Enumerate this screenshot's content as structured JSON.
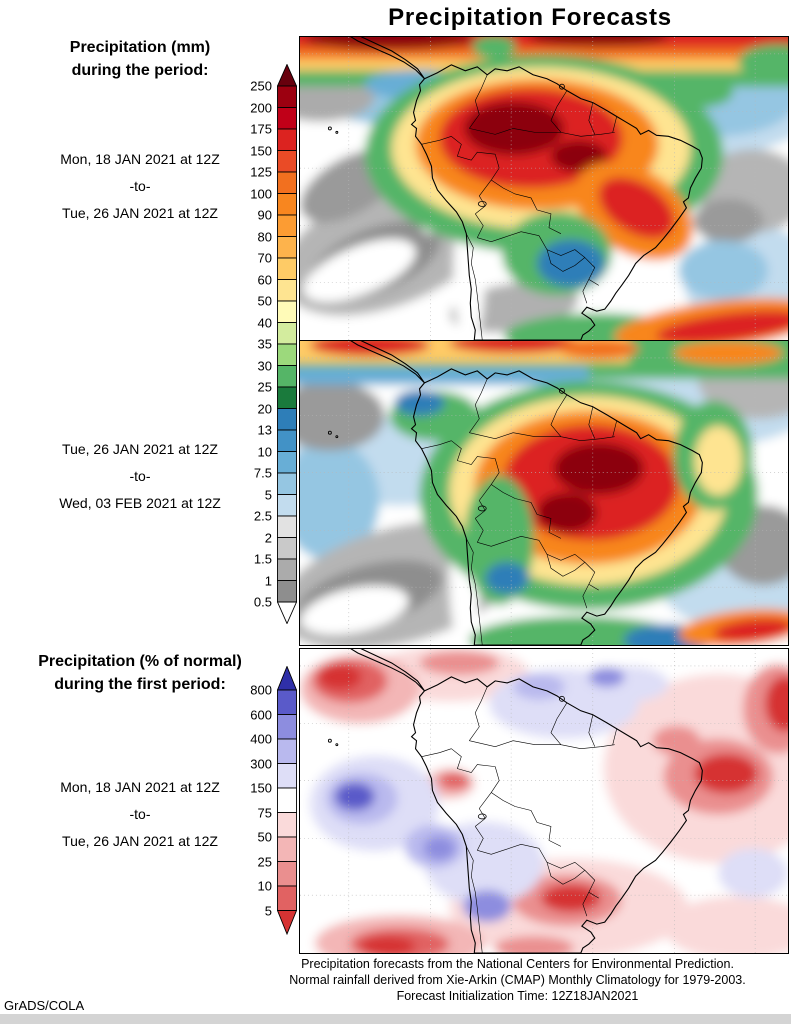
{
  "title": "Precipitation Forecasts",
  "left_panel": {
    "mm_heading": {
      "line1": "Precipitation (mm)",
      "line2": "during the period:"
    },
    "period1": {
      "from": "Mon, 18 JAN 2021 at 12Z",
      "separator": "-to-",
      "to": "Tue, 26 JAN 2021 at 12Z"
    },
    "period2": {
      "from": "Tue, 26 JAN 2021 at 12Z",
      "separator": "-to-",
      "to": "Wed, 03 FEB 2021 at 12Z"
    },
    "pct_heading": {
      "line1": "Precipitation (% of normal)",
      "line2": "during the first period:"
    },
    "period3": {
      "from": "Mon, 18 JAN 2021 at 12Z",
      "separator": "-to-",
      "to": "Tue, 26 JAN 2021 at 12Z"
    }
  },
  "colorbars": {
    "mm": {
      "width": 20,
      "arrow_h": 22,
      "seg_h": 21.5,
      "labels": [
        "250",
        "200",
        "175",
        "150",
        "125",
        "100",
        "90",
        "80",
        "70",
        "60",
        "50",
        "40",
        "35",
        "30",
        "25",
        "20",
        "13",
        "10",
        "7.5",
        "5",
        "2.5",
        "2",
        "1.5",
        "1",
        "0.5"
      ],
      "colors": [
        "#67000d",
        "#9c0010",
        "#c00018",
        "#dc2320",
        "#ea4b26",
        "#f2701f",
        "#f8861f",
        "#fc9c33",
        "#fdb34c",
        "#fecb66",
        "#fee491",
        "#fffbb8",
        "#d3ec9e",
        "#9cd97c",
        "#55b567",
        "#1a7a3c",
        "#2e7eb8",
        "#4292c6",
        "#68aed6",
        "#95c6e2",
        "#c2dcee",
        "#e2e2e2",
        "#c9c9c9",
        "#ababab",
        "#8e8e8e",
        "#ffffff"
      ]
    },
    "pct": {
      "width": 20,
      "arrow_h": 24,
      "seg_h": 24.5,
      "labels": [
        "800",
        "600",
        "400",
        "300",
        "150",
        "75",
        "50",
        "25",
        "10",
        "5"
      ],
      "colors": [
        "#2f2fa8",
        "#5a5ac9",
        "#8d8ddf",
        "#b9b9ee",
        "#dedef7",
        "#ffffff",
        "#fadada",
        "#f3b6b6",
        "#ea8f8f",
        "#e16262",
        "#d63333"
      ]
    }
  },
  "footer": {
    "line1": "Precipitation forecasts from the National Centers for Environmental Prediction.",
    "line2": "Normal rainfall derived from Xie-Arkin (CMAP) Monthly Climatology for 1979-2003.",
    "line3": "Forecast Initialization Time: 12Z18JAN2021"
  },
  "credit": "GrADS/COLA",
  "chart_data": [
    {
      "type": "heatmap",
      "panel": 1,
      "variable": "Precipitation (mm)",
      "period_from": "Mon, 18 JAN 2021 at 12Z",
      "period_to": "Tue, 26 JAN 2021 at 12Z",
      "region": "South America",
      "legend_levels_mm": [
        0.5,
        1,
        1.5,
        2,
        2.5,
        5,
        7.5,
        10,
        13,
        20,
        25,
        30,
        35,
        40,
        50,
        60,
        70,
        80,
        90,
        100,
        125,
        150,
        175,
        200,
        250
      ]
    },
    {
      "type": "heatmap",
      "panel": 2,
      "variable": "Precipitation (mm)",
      "period_from": "Tue, 26 JAN 2021 at 12Z",
      "period_to": "Wed, 03 FEB 2021 at 12Z",
      "region": "South America",
      "legend_levels_mm": [
        0.5,
        1,
        1.5,
        2,
        2.5,
        5,
        7.5,
        10,
        13,
        20,
        25,
        30,
        35,
        40,
        50,
        60,
        70,
        80,
        90,
        100,
        125,
        150,
        175,
        200,
        250
      ]
    },
    {
      "type": "heatmap",
      "panel": 3,
      "variable": "Precipitation (% of normal)",
      "period_from": "Mon, 18 JAN 2021 at 12Z",
      "period_to": "Tue, 26 JAN 2021 at 12Z",
      "region": "South America",
      "legend_levels_percent": [
        5,
        10,
        25,
        50,
        75,
        150,
        300,
        400,
        600,
        800
      ]
    }
  ]
}
